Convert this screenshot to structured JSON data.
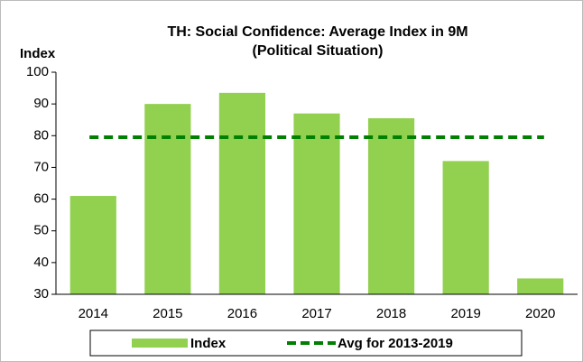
{
  "chart_data": {
    "type": "bar",
    "title": "TH: Social Confidence: Average Index in 9M",
    "subtitle": "(Political Situation)",
    "y_label": "Index",
    "categories": [
      "2014",
      "2015",
      "2016",
      "2017",
      "2018",
      "2019",
      "2020"
    ],
    "series": [
      {
        "name": "Index",
        "color": "#92d050",
        "values": [
          61,
          90,
          93.5,
          87,
          85.5,
          72,
          35
        ]
      }
    ],
    "reference_line": {
      "name": "Avg for 2013-2019",
      "color": "#008000",
      "value": 79.5
    },
    "ylim": [
      30,
      100
    ],
    "yticks": [
      30,
      40,
      50,
      60,
      70,
      80,
      90,
      100
    ],
    "grid": false,
    "legend": "bottom"
  }
}
